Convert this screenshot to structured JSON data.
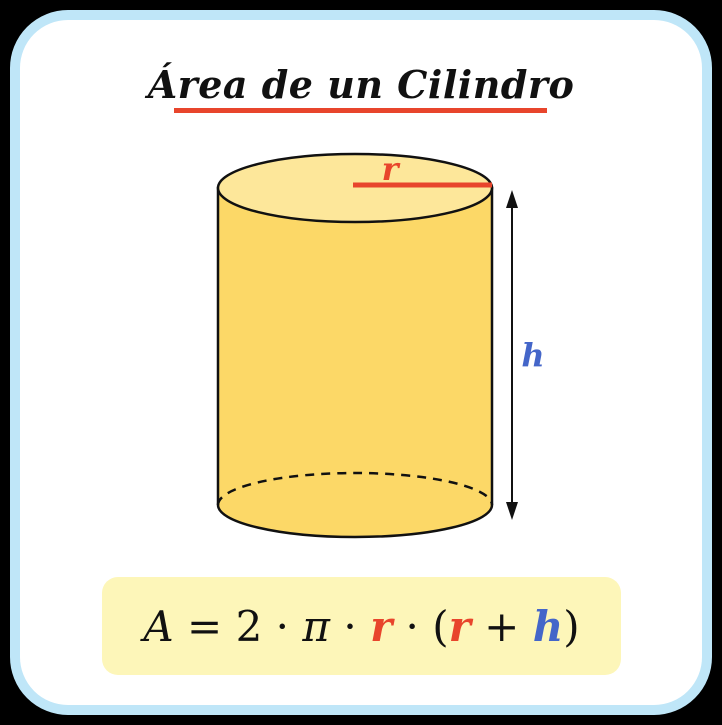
{
  "title": "Área de un Cilindro",
  "labels": {
    "radius": "r",
    "height": "h"
  },
  "formula": {
    "lhs": "A",
    "equals": " = ",
    "two": "2",
    "dot1": " · ",
    "pi": "π",
    "dot2": " · ",
    "r1": "r",
    "dot3": " · ",
    "open_paren": "(",
    "r2": "r",
    "plus": " + ",
    "h": "h",
    "close_paren": ")"
  },
  "colors": {
    "border": "#bfe6f8",
    "accent_red": "#e8452c",
    "accent_blue": "#4466c9",
    "cylinder_fill": "#fcd867",
    "cylinder_top": "#fde79a",
    "formula_bg": "#fdf6b9"
  }
}
